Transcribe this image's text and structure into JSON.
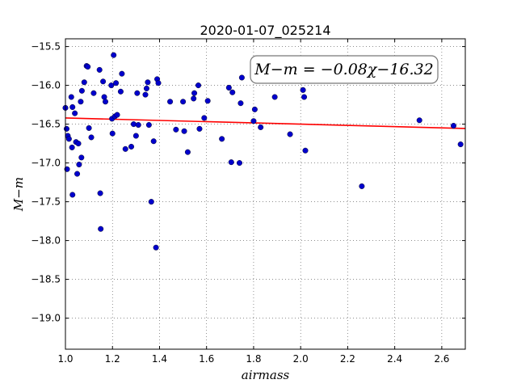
{
  "chart_data": {
    "type": "scatter",
    "title": "2020-01-07_025214",
    "xlabel": "airmass",
    "ylabel": "M−m",
    "xlim": [
      1.0,
      2.7
    ],
    "ylim": [
      -19.4,
      -15.4
    ],
    "y_inverted": true,
    "grid": true,
    "xticks": [
      "1.0",
      "1.2",
      "1.4",
      "1.6",
      "1.8",
      "2.0",
      "2.2",
      "2.4",
      "2.6"
    ],
    "yticks": [
      "−15.5",
      "−16.0",
      "−16.5",
      "−17.0",
      "−17.5",
      "−18.0",
      "−18.5",
      "−19.0"
    ],
    "annotation": "M−m = −0.08χ−16.32",
    "fit_line": {
      "slope": -0.08,
      "intercept": -16.32,
      "color": "#ff0000"
    },
    "point_color": "#0000cc",
    "points": [
      [
        1.0,
        -16.29
      ],
      [
        1.005,
        -16.56
      ],
      [
        1.007,
        -17.08
      ],
      [
        1.01,
        -16.65
      ],
      [
        1.015,
        -16.69
      ],
      [
        1.025,
        -16.15
      ],
      [
        1.028,
        -16.8
      ],
      [
        1.03,
        -16.28
      ],
      [
        1.03,
        -17.41
      ],
      [
        1.04,
        -16.36
      ],
      [
        1.045,
        -16.73
      ],
      [
        1.05,
        -17.14
      ],
      [
        1.055,
        -16.75
      ],
      [
        1.058,
        -17.02
      ],
      [
        1.065,
        -16.21
      ],
      [
        1.068,
        -16.93
      ],
      [
        1.07,
        -16.07
      ],
      [
        1.08,
        -15.96
      ],
      [
        1.09,
        -15.75
      ],
      [
        1.095,
        -15.76
      ],
      [
        1.1,
        -16.55
      ],
      [
        1.11,
        -16.67
      ],
      [
        1.12,
        -16.1
      ],
      [
        1.145,
        -15.8
      ],
      [
        1.148,
        -17.39
      ],
      [
        1.15,
        -17.85
      ],
      [
        1.16,
        -15.95
      ],
      [
        1.165,
        -16.15
      ],
      [
        1.17,
        -16.21
      ],
      [
        1.195,
        -16.0
      ],
      [
        1.198,
        -16.43
      ],
      [
        1.2,
        -16.62
      ],
      [
        1.205,
        -15.61
      ],
      [
        1.21,
        -16.4
      ],
      [
        1.215,
        -15.97
      ],
      [
        1.22,
        -16.38
      ],
      [
        1.235,
        -16.08
      ],
      [
        1.24,
        -15.85
      ],
      [
        1.255,
        -16.82
      ],
      [
        1.28,
        -16.79
      ],
      [
        1.29,
        -16.5
      ],
      [
        1.3,
        -16.65
      ],
      [
        1.305,
        -16.1
      ],
      [
        1.31,
        -16.51
      ],
      [
        1.34,
        -16.12
      ],
      [
        1.345,
        -16.04
      ],
      [
        1.35,
        -15.96
      ],
      [
        1.355,
        -16.51
      ],
      [
        1.365,
        -17.5
      ],
      [
        1.375,
        -16.72
      ],
      [
        1.385,
        -18.09
      ],
      [
        1.39,
        -15.92
      ],
      [
        1.395,
        -15.97
      ],
      [
        1.445,
        -16.21
      ],
      [
        1.47,
        -16.57
      ],
      [
        1.5,
        -16.21
      ],
      [
        1.505,
        -16.59
      ],
      [
        1.52,
        -16.86
      ],
      [
        1.545,
        -16.17
      ],
      [
        1.548,
        -16.1
      ],
      [
        1.565,
        -16.0
      ],
      [
        1.57,
        -16.56
      ],
      [
        1.59,
        -16.42
      ],
      [
        1.605,
        -16.2
      ],
      [
        1.665,
        -16.69
      ],
      [
        1.695,
        -16.03
      ],
      [
        1.71,
        -16.09
      ],
      [
        1.705,
        -16.99
      ],
      [
        1.74,
        -17.0
      ],
      [
        1.745,
        -16.23
      ],
      [
        1.75,
        -15.9
      ],
      [
        1.8,
        -16.46
      ],
      [
        1.805,
        -16.31
      ],
      [
        1.83,
        -16.54
      ],
      [
        1.89,
        -16.15
      ],
      [
        1.955,
        -16.63
      ],
      [
        2.01,
        -16.06
      ],
      [
        2.015,
        -16.15
      ],
      [
        2.02,
        -16.84
      ],
      [
        2.26,
        -17.3
      ],
      [
        2.505,
        -16.45
      ],
      [
        2.65,
        -16.52
      ],
      [
        2.68,
        -16.76
      ]
    ]
  }
}
